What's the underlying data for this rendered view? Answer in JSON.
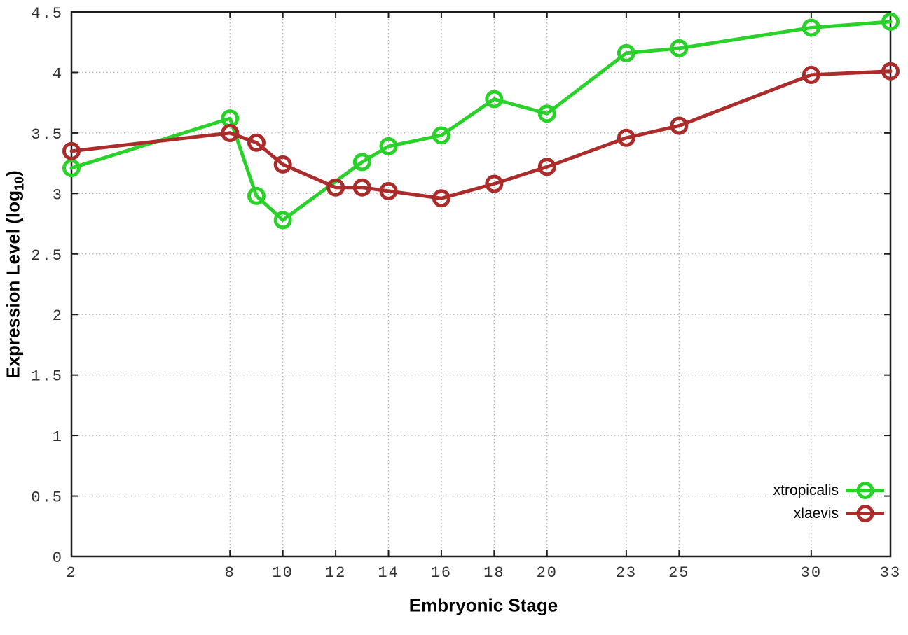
{
  "figure": {
    "xlabel": "Embryonic Stage",
    "ylabel": {
      "prefix": "Expression Level (log",
      "sub": "10",
      "suffix": ")"
    },
    "background_color": "#ffffff",
    "axis_color": "#1c1c1c",
    "grid_color": "#b4b4b4",
    "tick_label_color": "#303030"
  },
  "chart_data": {
    "type": "line",
    "title": "",
    "xlabel": "Embryonic Stage",
    "ylabel": "Expression Level (log10)",
    "xlim": [
      2,
      33
    ],
    "ylim": [
      0,
      4.5
    ],
    "x_ticks": [
      2,
      8,
      10,
      12,
      14,
      16,
      18,
      20,
      23,
      25,
      30,
      33
    ],
    "y_ticks": [
      0,
      0.5,
      1,
      1.5,
      2,
      2.5,
      3,
      3.5,
      4,
      4.5
    ],
    "grid": true,
    "grid_style": "dotted",
    "legend_position": "bottom-right",
    "marker": "open-circle",
    "series": [
      {
        "name": "xtropicalis",
        "color": "#28d228",
        "points": [
          [
            2,
            3.21
          ],
          [
            8,
            3.62
          ],
          [
            9,
            2.98
          ],
          [
            10,
            2.78
          ],
          [
            13,
            3.26
          ],
          [
            14,
            3.39
          ],
          [
            16,
            3.48
          ],
          [
            18,
            3.78
          ],
          [
            20,
            3.66
          ],
          [
            23,
            4.16
          ],
          [
            25,
            4.2
          ],
          [
            30,
            4.37
          ],
          [
            33,
            4.42
          ]
        ]
      },
      {
        "name": "xlaevis",
        "color": "#ac2c2c",
        "points": [
          [
            2,
            3.35
          ],
          [
            8,
            3.5
          ],
          [
            9,
            3.42
          ],
          [
            10,
            3.24
          ],
          [
            12,
            3.05
          ],
          [
            13,
            3.05
          ],
          [
            14,
            3.02
          ],
          [
            16,
            2.96
          ],
          [
            18,
            3.08
          ],
          [
            20,
            3.22
          ],
          [
            23,
            3.46
          ],
          [
            25,
            3.56
          ],
          [
            30,
            3.98
          ],
          [
            33,
            4.01
          ]
        ]
      }
    ]
  }
}
